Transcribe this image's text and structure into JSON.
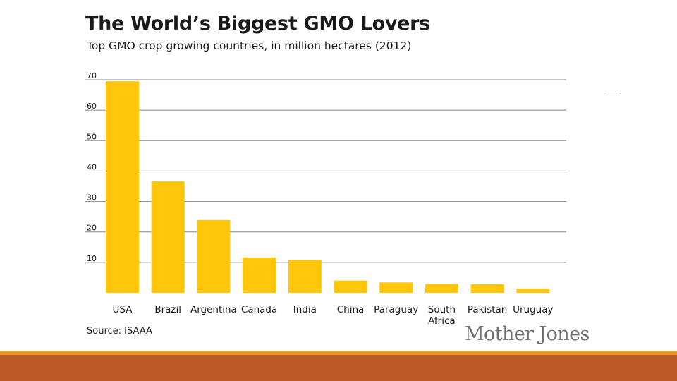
{
  "header": {
    "title": "The World’s Biggest GMO Lovers",
    "subtitle": "Top GMO crop growing countries, in million hectares (2012)"
  },
  "footer": {
    "source": "Source: ISAAA",
    "logo_text": "Mother Jones"
  },
  "colors": {
    "bar": "#ffc60b",
    "grid": "#8a8a8a",
    "band_thin": "#e39a2d",
    "band_thick": "#bf5a28"
  },
  "chart_data": {
    "type": "bar",
    "title": "The World’s Biggest GMO Lovers",
    "subtitle": "Top GMO crop growing countries, in million hectares (2012)",
    "xlabel": "",
    "ylabel": "",
    "ylim": [
      0,
      70
    ],
    "yticks": [
      "10",
      "20",
      "30",
      "40",
      "50",
      "60",
      "70"
    ],
    "grid": true,
    "categories": [
      "USA",
      "Brazil",
      "Argentina",
      "Canada",
      "India",
      "China",
      "Paraguay",
      "South Africa",
      "Pakistan",
      "Uruguay"
    ],
    "category_lines": [
      [
        "USA"
      ],
      [
        "Brazil"
      ],
      [
        "Argentina"
      ],
      [
        "Canada"
      ],
      [
        "India"
      ],
      [
        "China"
      ],
      [
        "Paraguay"
      ],
      [
        "South",
        "Africa"
      ],
      [
        "Pakistan"
      ],
      [
        "Uruguay"
      ]
    ],
    "values": [
      69.5,
      36.6,
      23.9,
      11.6,
      10.8,
      4.0,
      3.4,
      2.9,
      2.8,
      1.4
    ]
  }
}
